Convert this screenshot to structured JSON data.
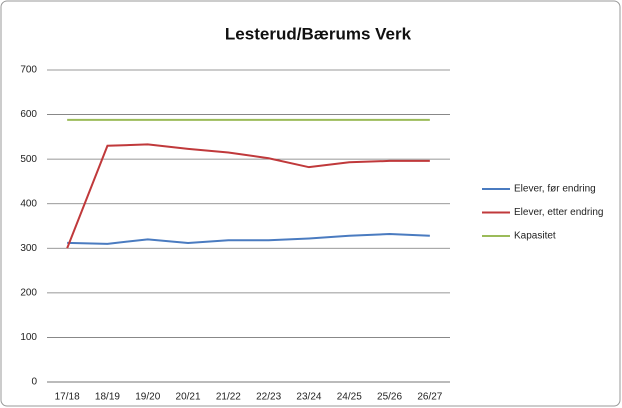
{
  "chart_data": {
    "type": "line",
    "title": "Lesterud/Bærums Verk",
    "categories": [
      "17/18",
      "18/19",
      "19/20",
      "20/21",
      "21/22",
      "22/23",
      "23/24",
      "24/25",
      "25/26",
      "26/27"
    ],
    "series": [
      {
        "name": "Elever, før endring",
        "color": "#4a7bc0",
        "values": [
          312,
          310,
          320,
          312,
          318,
          318,
          322,
          328,
          332,
          328
        ]
      },
      {
        "name": "Elever, etter endring",
        "color": "#c0393b",
        "values": [
          300,
          530,
          533,
          523,
          515,
          502,
          482,
          493,
          496,
          496
        ]
      },
      {
        "name": "Kapasitet",
        "color": "#9bbb59",
        "values": [
          588,
          588,
          588,
          588,
          588,
          588,
          588,
          588,
          588,
          588
        ]
      }
    ],
    "ylim": [
      0,
      700
    ],
    "yticks": [
      0,
      100,
      200,
      300,
      400,
      500,
      600,
      700
    ],
    "grid": true,
    "legend": "right"
  }
}
